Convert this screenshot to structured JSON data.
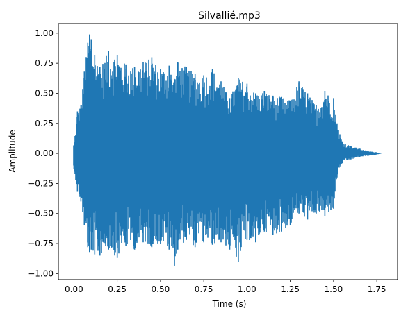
{
  "chart_data": {
    "type": "line",
    "title": "Silvallié.mp3",
    "xlabel": "Time (s)",
    "ylabel": "Amplitude",
    "xlim": [
      -0.09,
      1.87
    ],
    "ylim": [
      -1.05,
      1.08
    ],
    "x_ticks": [
      0.0,
      0.25,
      0.5,
      0.75,
      1.0,
      1.25,
      1.5,
      1.75
    ],
    "x_tick_labels": [
      "0.00",
      "0.25",
      "0.50",
      "0.75",
      "1.00",
      "1.25",
      "1.50",
      "1.75"
    ],
    "y_ticks": [
      1.0,
      0.75,
      0.5,
      0.25,
      0.0,
      -0.25,
      -0.5,
      -0.75,
      -1.0
    ],
    "y_tick_labels": [
      "1.00",
      "0.75",
      "0.50",
      "0.25",
      "0.00",
      "−0.25",
      "−0.50",
      "−0.75",
      "−1.00"
    ],
    "grid": false,
    "series": [
      {
        "color": "#1f77b4",
        "envelope": {
          "x": [
            0.0,
            0.02,
            0.04,
            0.06,
            0.08,
            0.09,
            0.1,
            0.12,
            0.15,
            0.2,
            0.25,
            0.3,
            0.35,
            0.4,
            0.45,
            0.5,
            0.55,
            0.58,
            0.6,
            0.65,
            0.7,
            0.75,
            0.8,
            0.85,
            0.9,
            0.95,
            1.0,
            1.05,
            1.1,
            1.15,
            1.2,
            1.25,
            1.3,
            1.35,
            1.4,
            1.45,
            1.5,
            1.52,
            1.55,
            1.6,
            1.65,
            1.7,
            1.75,
            1.78
          ],
          "max": [
            0.07,
            0.35,
            0.4,
            0.68,
            0.92,
            0.99,
            0.95,
            0.82,
            0.72,
            0.85,
            0.82,
            0.74,
            0.72,
            0.76,
            0.8,
            0.7,
            0.73,
            0.62,
            0.76,
            0.72,
            0.66,
            0.65,
            0.7,
            0.6,
            0.46,
            0.63,
            0.58,
            0.5,
            0.52,
            0.48,
            0.47,
            0.44,
            0.6,
            0.5,
            0.4,
            0.52,
            0.46,
            0.25,
            0.1,
            0.06,
            0.04,
            0.02,
            0.01,
            0.0
          ],
          "min": [
            -0.13,
            -0.32,
            -0.4,
            -0.6,
            -0.78,
            -0.82,
            -0.8,
            -0.84,
            -0.85,
            -0.8,
            -0.87,
            -0.77,
            -0.8,
            -0.74,
            -0.78,
            -0.75,
            -0.8,
            -0.94,
            -0.8,
            -0.72,
            -0.78,
            -0.74,
            -0.76,
            -0.74,
            -0.8,
            -0.9,
            -0.72,
            -0.74,
            -0.65,
            -0.68,
            -0.65,
            -0.6,
            -0.5,
            -0.55,
            -0.5,
            -0.52,
            -0.46,
            -0.2,
            -0.08,
            -0.05,
            -0.03,
            -0.02,
            -0.01,
            0.0
          ]
        }
      }
    ]
  }
}
